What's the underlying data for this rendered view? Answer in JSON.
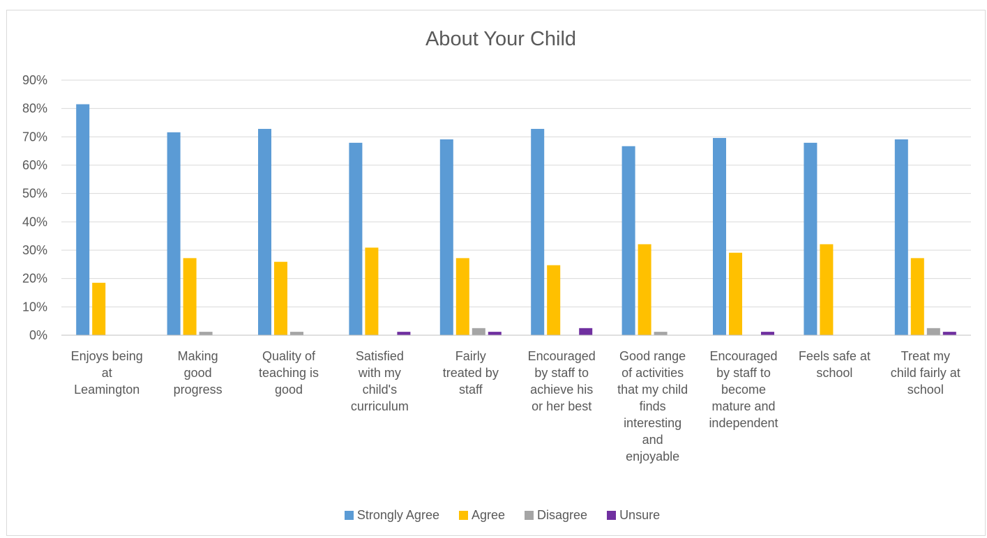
{
  "chart_data": {
    "type": "bar",
    "title": "About Your Child",
    "xlabel": "",
    "ylabel": "",
    "ylim": [
      0,
      0.9
    ],
    "ytick_step": 0.1,
    "ytick_format": "percent",
    "grid": true,
    "legend_position": "bottom",
    "categories": [
      "Enjoys being at Leamington",
      "Making good progress",
      "Quality of teaching is good",
      "Satisfied with my child's curriculum",
      "Fairly treated by staff",
      "Encouraged by staff to achieve his or her best",
      "Good range of activities that my child finds interesting and enjoyable",
      "Encouraged by staff to become mature and independent",
      "Feels safe at school",
      "Treat my child fairly at school"
    ],
    "category_label_lines": [
      [
        "Enjoys being",
        "at",
        "Leamington"
      ],
      [
        "Making",
        "good",
        "progress"
      ],
      [
        "Quality of",
        "teaching is",
        "good"
      ],
      [
        "Satisfied",
        "with my",
        "child's",
        "curriculum"
      ],
      [
        "Fairly",
        "treated by",
        "staff"
      ],
      [
        "Encouraged",
        "by staff to",
        "achieve his",
        "or her best"
      ],
      [
        "Good range",
        "of activities",
        "that my child",
        "finds",
        "interesting",
        "and",
        "enjoyable"
      ],
      [
        "Encouraged",
        "by staff to",
        "become",
        "mature and",
        "independent"
      ],
      [
        "Feels safe at",
        "school"
      ],
      [
        "Treat my",
        "child fairly at",
        "school"
      ]
    ],
    "series": [
      {
        "name": "Strongly Agree",
        "color": "#5b9bd5",
        "values": [
          0.815,
          0.716,
          0.728,
          0.679,
          0.691,
          0.728,
          0.667,
          0.696,
          0.679,
          0.691
        ]
      },
      {
        "name": "Agree",
        "color": "#ffc000",
        "values": [
          0.185,
          0.272,
          0.259,
          0.309,
          0.272,
          0.247,
          0.321,
          0.291,
          0.321,
          0.272
        ]
      },
      {
        "name": "Disagree",
        "color": "#a5a5a5",
        "values": [
          0,
          0.012,
          0.012,
          0,
          0.025,
          0,
          0.012,
          0,
          0,
          0.025
        ]
      },
      {
        "name": "Unsure",
        "color": "#7030a0",
        "values": [
          0,
          0,
          0,
          0.012,
          0.012,
          0.025,
          0,
          0.012,
          0,
          0.012
        ]
      }
    ]
  }
}
